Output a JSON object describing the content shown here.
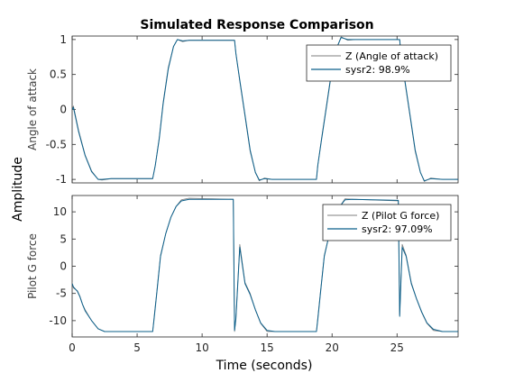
{
  "title": "Simulated Response Comparison",
  "xlabel": "Time (seconds)",
  "ylabel": "Amplitude",
  "colors": {
    "measured": "#7f7f7f",
    "model": "#0b5f8a",
    "axes": "#262626",
    "grid": "#dcdcdc"
  },
  "chart_data": [
    {
      "type": "line",
      "ylabel": "Angle of attack",
      "xlim": [
        0,
        29.7
      ],
      "ylim": [
        -1.05,
        1.05
      ],
      "xticks": [
        0,
        5,
        10,
        15,
        20,
        25
      ],
      "yticks": [
        -1,
        -0.5,
        0,
        0.5,
        1
      ],
      "ytick_labels": [
        "-1",
        "-0.5",
        "0",
        "0.5",
        "1"
      ],
      "grid": false,
      "legend": "top-right",
      "series": [
        {
          "name": "Z (Angle of attack)",
          "x": [
            0,
            0.1,
            0.5,
            1.0,
            1.5,
            2.0,
            2.3,
            3.0,
            6.2,
            6.4,
            6.7,
            7.0,
            7.4,
            7.8,
            8.1,
            8.5,
            9.0,
            12.5,
            12.6,
            12.9,
            13.3,
            13.7,
            14.1,
            14.4,
            14.8,
            15.4,
            18.8,
            18.9,
            19.2,
            19.6,
            20.0,
            20.4,
            20.7,
            21.2,
            21.8,
            25.2,
            25.3,
            25.6,
            26.0,
            26.4,
            26.8,
            27.1,
            27.6,
            28.5,
            29.7
          ],
          "y": [
            0,
            0.05,
            -0.3,
            -0.65,
            -0.88,
            -1.0,
            -1.01,
            -0.99,
            -0.99,
            -0.8,
            -0.4,
            0.1,
            0.6,
            0.9,
            1.0,
            0.97,
            0.99,
            0.99,
            0.8,
            0.4,
            -0.1,
            -0.6,
            -0.9,
            -1.02,
            -0.98,
            -1.0,
            -1.0,
            -0.8,
            -0.4,
            0.1,
            0.6,
            0.9,
            1.04,
            0.99,
            1.0,
            1.0,
            0.8,
            0.4,
            -0.1,
            -0.6,
            -0.9,
            -1.03,
            -0.98,
            -1.0,
            -1.0
          ]
        },
        {
          "name": "sysr2: 98.9%",
          "x": [
            0,
            0.1,
            0.5,
            1.0,
            1.5,
            2.0,
            2.3,
            3.0,
            6.2,
            6.4,
            6.7,
            7.0,
            7.4,
            7.8,
            8.1,
            8.5,
            9.0,
            12.5,
            12.6,
            12.9,
            13.3,
            13.7,
            14.1,
            14.4,
            14.8,
            15.4,
            18.8,
            18.9,
            19.2,
            19.6,
            20.0,
            20.4,
            20.7,
            21.2,
            21.8,
            25.2,
            25.3,
            25.6,
            26.0,
            26.4,
            26.8,
            27.1,
            27.6,
            28.5,
            29.7
          ],
          "y": [
            0,
            0.03,
            -0.32,
            -0.66,
            -0.89,
            -1.0,
            -1.0,
            -0.99,
            -0.99,
            -0.8,
            -0.42,
            0.08,
            0.58,
            0.9,
            1.0,
            0.98,
            0.99,
            0.99,
            0.8,
            0.42,
            -0.08,
            -0.58,
            -0.9,
            -1.01,
            -0.99,
            -1.0,
            -1.0,
            -0.8,
            -0.42,
            0.08,
            0.58,
            0.9,
            1.03,
            1.0,
            1.0,
            1.0,
            0.8,
            0.42,
            -0.08,
            -0.58,
            -0.9,
            -1.02,
            -0.99,
            -1.0,
            -1.0
          ]
        }
      ]
    },
    {
      "type": "line",
      "ylabel": "Pilot G force",
      "xlim": [
        0,
        29.7
      ],
      "ylim": [
        -13,
        13
      ],
      "xticks": [
        0,
        5,
        10,
        15,
        20,
        25
      ],
      "xtick_labels": [
        "0",
        "5",
        "10",
        "15",
        "20",
        "25"
      ],
      "yticks": [
        -10,
        -5,
        0,
        5,
        10
      ],
      "ytick_labels": [
        "-10",
        "-5",
        "0",
        "5",
        "10"
      ],
      "grid": false,
      "legend": "top-right",
      "series": [
        {
          "name": "Z (Pilot G force)",
          "x": [
            0,
            0.1,
            0.4,
            0.6,
            0.8,
            1.0,
            1.5,
            2.0,
            2.5,
            3.0,
            6.2,
            6.3,
            6.5,
            6.8,
            7.2,
            7.6,
            8.0,
            8.4,
            9.0,
            12.4,
            12.5,
            12.6,
            12.9,
            13.3,
            13.7,
            14.1,
            14.5,
            15.0,
            15.6,
            18.8,
            18.9,
            19.1,
            19.4,
            19.8,
            20.2,
            20.6,
            21.0,
            21.6,
            25.1,
            25.2,
            25.4,
            25.7,
            26.1,
            26.5,
            26.9,
            27.3,
            27.8,
            28.5,
            29.7
          ],
          "y": [
            -3,
            -4,
            -4.5,
            -5.5,
            -7,
            -8,
            -10,
            -11.5,
            -12,
            -12,
            -12,
            -9.5,
            -5,
            2,
            6,
            9,
            11,
            12.2,
            12.5,
            12.3,
            -12,
            -9.5,
            4,
            -3,
            -5,
            -8,
            -10.5,
            -12,
            -12,
            -12,
            -9.5,
            -5,
            2,
            6,
            9,
            11,
            12.4,
            12.3,
            12,
            -9,
            4,
            2,
            -3,
            -6,
            -8.5,
            -10.5,
            -11.8,
            -12,
            -12
          ]
        },
        {
          "name": "sysr2: 97.09%",
          "x": [
            0,
            0.1,
            0.4,
            0.6,
            0.8,
            1.0,
            1.5,
            2.0,
            2.5,
            3.0,
            6.2,
            6.3,
            6.5,
            6.8,
            7.2,
            7.6,
            8.0,
            8.4,
            9.0,
            12.4,
            12.5,
            12.6,
            12.9,
            13.3,
            13.7,
            14.1,
            14.5,
            15.0,
            15.6,
            18.8,
            18.9,
            19.1,
            19.4,
            19.8,
            20.2,
            20.6,
            21.0,
            21.6,
            25.1,
            25.2,
            25.4,
            25.7,
            26.1,
            26.5,
            26.9,
            27.3,
            27.8,
            28.5,
            29.7
          ],
          "y": [
            -3.2,
            -3.8,
            -4.6,
            -5.6,
            -7,
            -8.2,
            -10,
            -11.5,
            -12,
            -12,
            -12,
            -9.8,
            -5.2,
            1.8,
            6,
            9,
            11,
            12,
            12.3,
            12.3,
            -11.8,
            -9.6,
            3.5,
            -3.2,
            -5.2,
            -8,
            -10.4,
            -11.8,
            -12,
            -12,
            -9.8,
            -5.2,
            1.8,
            6,
            9,
            11,
            12.2,
            12.3,
            12.1,
            -9.2,
            3.5,
            1.8,
            -3.2,
            -6,
            -8.4,
            -10.4,
            -11.6,
            -12,
            -12
          ]
        }
      ]
    }
  ]
}
